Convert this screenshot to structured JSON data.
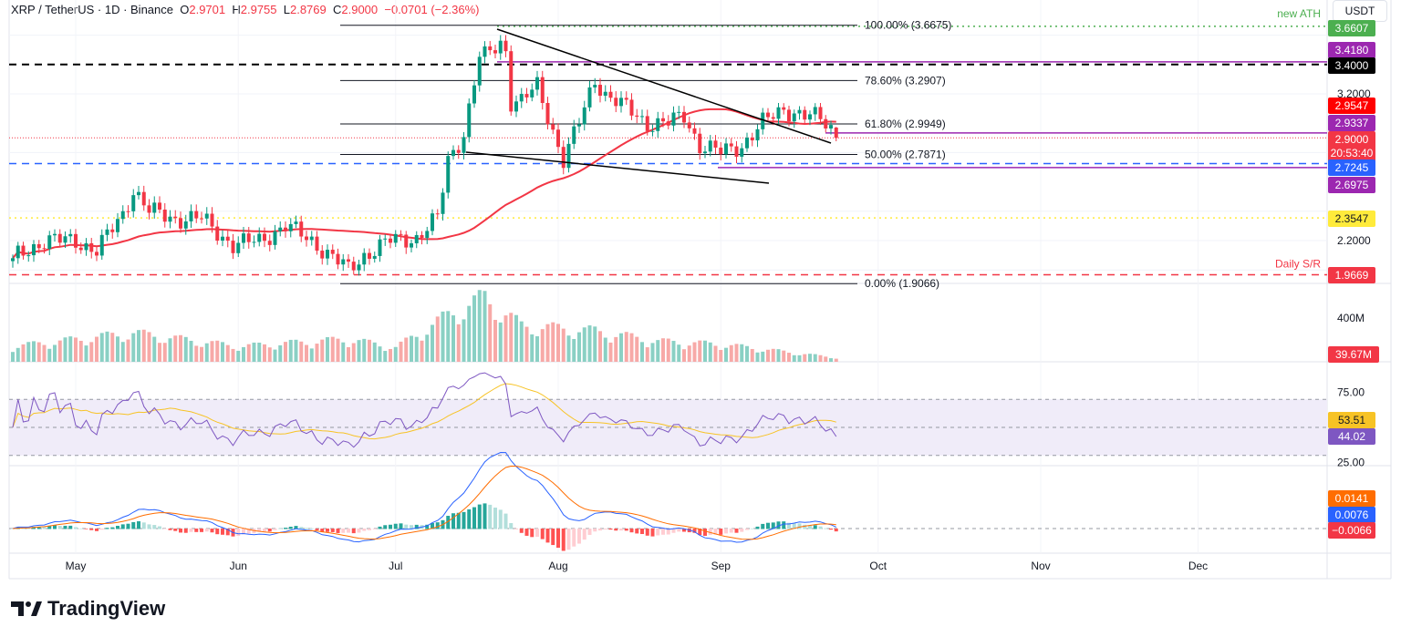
{
  "header": {
    "symbol": "XRP / TetherUS · 1D · Binance",
    "o_label": "O",
    "o": "2.9701",
    "h_label": "H",
    "h": "2.9755",
    "l_label": "L",
    "l": "2.8769",
    "c_label": "C",
    "c": "2.9000",
    "change": "−0.0701 (−2.36%)",
    "currency": "USDT"
  },
  "footer": {
    "brand": "TradingView"
  },
  "colors": {
    "up": "#089981",
    "down": "#f23645",
    "ma": "#f23645",
    "rsi": "#7e57c2",
    "rsi_ma": "#f7c325",
    "macd": "#2962ff",
    "signal": "#ff6d00"
  },
  "chart_data": {
    "type": "candlestick",
    "price_axis": {
      "ticks": [
        "3.2000",
        "2.2000"
      ],
      "range": [
        1.85,
        3.72
      ]
    },
    "time_axis": {
      "ticks": [
        "May",
        "Jun",
        "Jul",
        "Aug",
        "Sep",
        "Oct",
        "Nov",
        "Dec"
      ]
    },
    "closes": [
      [
        "2025-04-19",
        2.08
      ],
      [
        "2025-04-25",
        2.2
      ],
      [
        "2025-05-01",
        2.2
      ],
      [
        "2025-05-05",
        2.13
      ],
      [
        "2025-05-10",
        2.38
      ],
      [
        "2025-05-12",
        2.55
      ],
      [
        "2025-05-15",
        2.4
      ],
      [
        "2025-05-20",
        2.35
      ],
      [
        "2025-05-25",
        2.35
      ],
      [
        "2025-05-31",
        2.17
      ],
      [
        "2025-06-05",
        2.2
      ],
      [
        "2025-06-10",
        2.3
      ],
      [
        "2025-06-15",
        2.2
      ],
      [
        "2025-06-22",
        2.0
      ],
      [
        "2025-06-25",
        2.1
      ],
      [
        "2025-06-30",
        2.2
      ],
      [
        "2025-07-05",
        2.22
      ],
      [
        "2025-07-09",
        2.35
      ],
      [
        "2025-07-11",
        2.75
      ],
      [
        "2025-07-14",
        2.93
      ],
      [
        "2025-07-17",
        3.45
      ],
      [
        "2025-07-18",
        3.45
      ],
      [
        "2025-07-21",
        3.55
      ],
      [
        "2025-07-22",
        3.5
      ],
      [
        "2025-07-23",
        3.15
      ],
      [
        "2025-07-25",
        3.15
      ],
      [
        "2025-07-28",
        3.25
      ],
      [
        "2025-08-02",
        2.75
      ],
      [
        "2025-08-05",
        3.0
      ],
      [
        "2025-08-08",
        3.3
      ],
      [
        "2025-08-10",
        3.2
      ],
      [
        "2025-08-14",
        3.1
      ],
      [
        "2025-08-18",
        3.0
      ],
      [
        "2025-08-22",
        3.0
      ],
      [
        "2025-08-25",
        3.05
      ],
      [
        "2025-08-28",
        2.85
      ],
      [
        "2025-09-01",
        2.8
      ],
      [
        "2025-09-05",
        2.85
      ],
      [
        "2025-09-09",
        3.0
      ],
      [
        "2025-09-13",
        3.1
      ],
      [
        "2025-09-17",
        3.05
      ],
      [
        "2025-09-20",
        3.03
      ],
      [
        "2025-09-22",
        2.97
      ],
      [
        "2025-09-23",
        2.9
      ]
    ],
    "ohlc_last": {
      "open": 2.9701,
      "high": 2.9755,
      "low": 2.8769,
      "close": 2.9
    },
    "fib_levels": [
      {
        "label": "100.00% (3.6675)",
        "value": 3.6675
      },
      {
        "label": "78.60% (3.2907)",
        "value": 3.2907
      },
      {
        "label": "61.80% (2.9949)",
        "value": 2.9949
      },
      {
        "label": "50.00% (2.7871)",
        "value": 2.7871
      },
      {
        "label": "0.00% (1.9066)",
        "value": 1.9066
      }
    ],
    "levels": [
      {
        "value": 3.6607,
        "label": "3.6607",
        "color": "#4caf50",
        "style": "dotted",
        "note": "new ATH"
      },
      {
        "value": 3.418,
        "label": "3.4180",
        "color": "#9c27b0",
        "style": "solid"
      },
      {
        "value": 3.4,
        "label": "3.4000",
        "color": "#000000",
        "style": "dashed"
      },
      {
        "value": 2.9547,
        "label": "2.9547",
        "color": "#ff0000",
        "style": "ma"
      },
      {
        "value": 2.9337,
        "label": "2.9337",
        "color": "#9c27b0",
        "style": "solid"
      },
      {
        "value": 2.9,
        "label": "2.9000",
        "color": "#f23645",
        "style": "price",
        "countdown": "20:53:40"
      },
      {
        "value": 2.7245,
        "label": "2.7245",
        "color": "#2962ff",
        "style": "dashed"
      },
      {
        "value": 2.6975,
        "label": "2.6975",
        "color": "#9c27b0",
        "style": "solid"
      },
      {
        "value": 2.3547,
        "label": "2.3547",
        "color": "#ffeb3b",
        "style": "dotted"
      },
      {
        "value": 1.9669,
        "label": "1.9669",
        "color": "#f23645",
        "style": "dashed",
        "note": "Daily S/R"
      }
    ],
    "volume": {
      "axis_tick": "400M",
      "last": "39.67M",
      "levels_m": [
        [
          "2025-04-19",
          150
        ],
        [
          "2025-05-12",
          280
        ],
        [
          "2025-06-01",
          150
        ],
        [
          "2025-06-22",
          220
        ],
        [
          "2025-07-01",
          140
        ],
        [
          "2025-07-12",
          480
        ],
        [
          "2025-07-18",
          620
        ],
        [
          "2025-07-25",
          350
        ],
        [
          "2025-08-08",
          300
        ],
        [
          "2025-08-20",
          200
        ],
        [
          "2025-09-01",
          170
        ],
        [
          "2025-09-23",
          40
        ]
      ]
    },
    "rsi": {
      "axis_ticks": [
        "75.00",
        "25.00"
      ],
      "bands": [
        70,
        50,
        30
      ],
      "value": "44.02",
      "ma_value": "53.51"
    },
    "macd": {
      "macd_value": "0.0076",
      "signal_value": "0.0141",
      "hist_value": "−0.0066"
    }
  }
}
